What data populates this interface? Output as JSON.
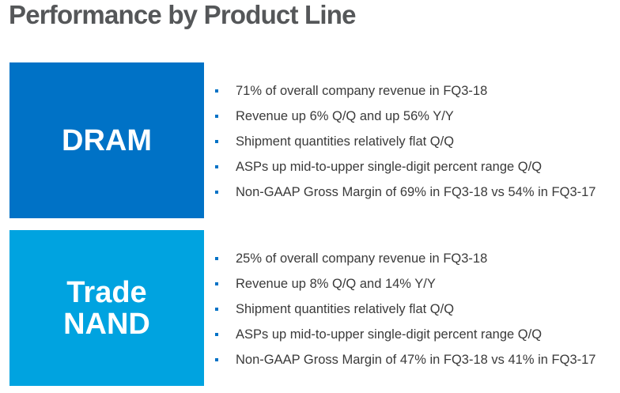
{
  "title": "Performance by Product Line",
  "sections": [
    {
      "label": "DRAM",
      "color": "#0072c6",
      "bullets": [
        "71% of overall company revenue in FQ3-18",
        "Revenue up 6% Q/Q and up 56% Y/Y",
        "Shipment quantities relatively flat Q/Q",
        "ASPs up mid-to-upper single-digit percent range Q/Q",
        "Non-GAAP Gross Margin of 69% in FQ3-18 vs 54% in FQ3-17"
      ]
    },
    {
      "label_line1": "Trade",
      "label_line2": "NAND",
      "color": "#00a3e0",
      "bullets": [
        "25% of overall company revenue in FQ3-18",
        "Revenue up 8% Q/Q and 14% Y/Y",
        "Shipment quantities relatively flat Q/Q",
        "ASPs up mid-to-upper single-digit percent range Q/Q",
        "Non-GAAP Gross Margin of 47% in FQ3-18 vs 41% in FQ3-17"
      ]
    }
  ]
}
